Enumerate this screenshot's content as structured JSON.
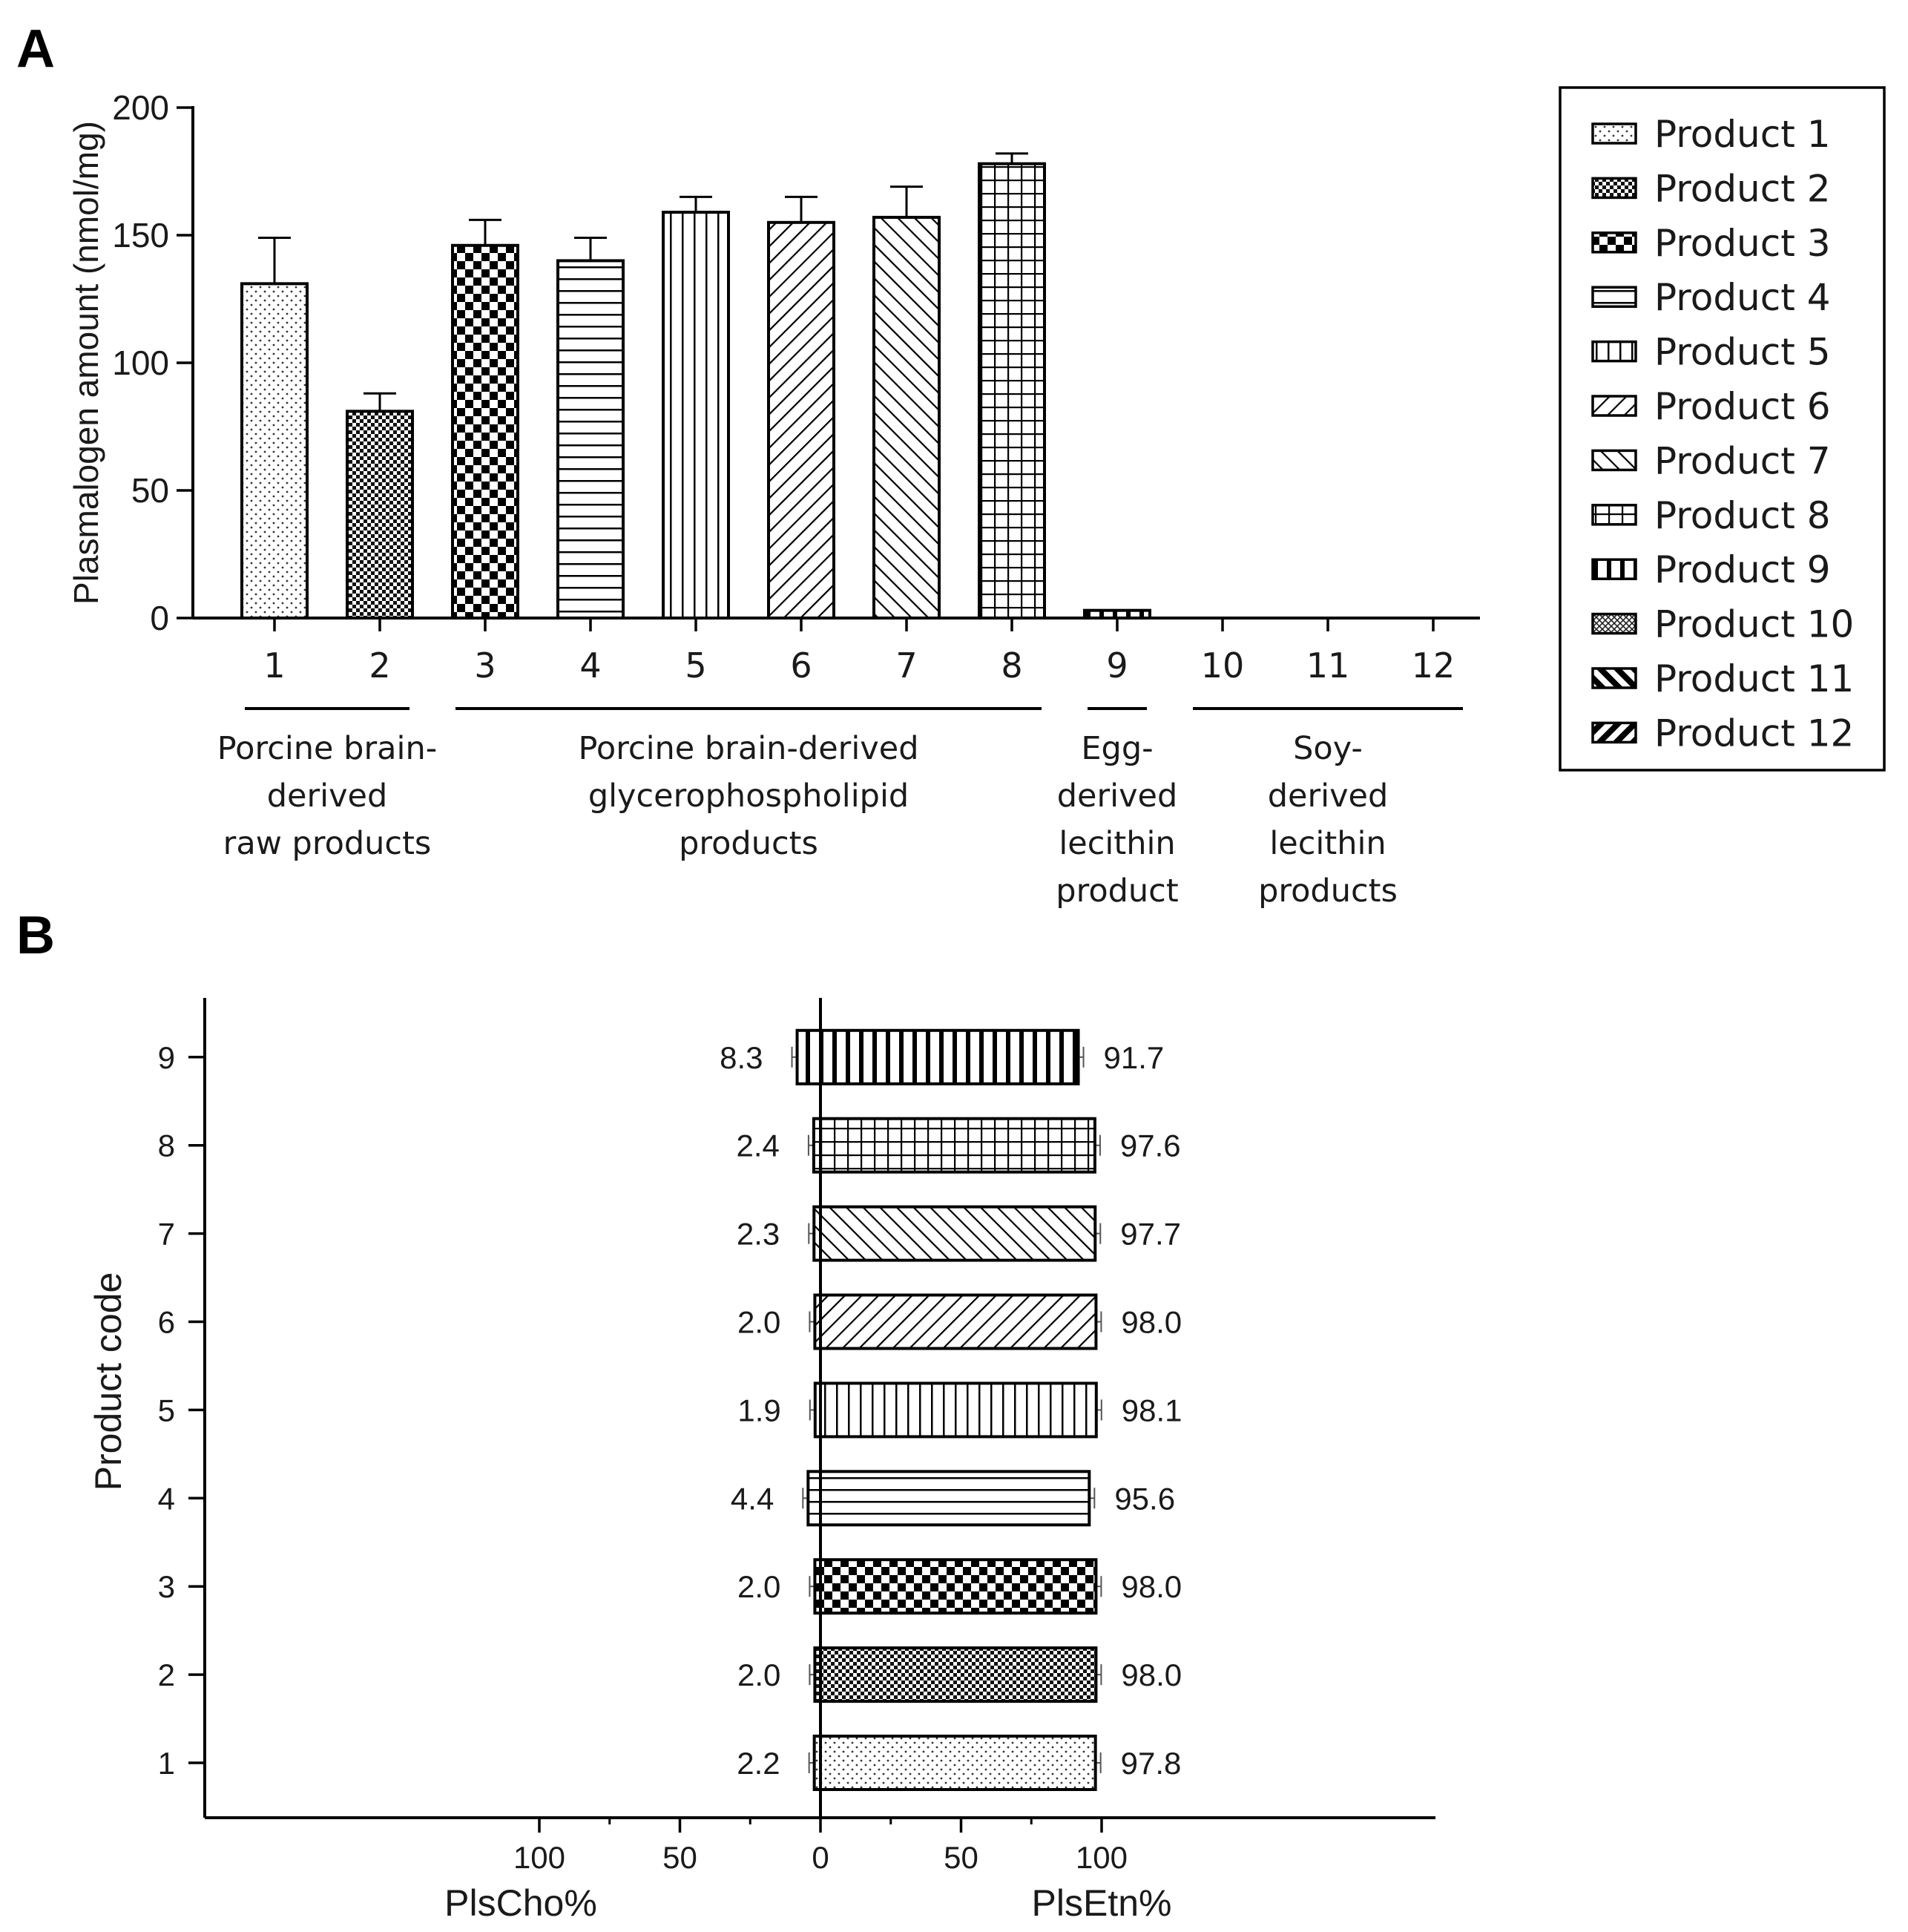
{
  "chart_data": [
    {
      "panel": "A",
      "type": "bar",
      "ylabel": "Plasmalogen amount (nmol/mg)",
      "ylim": [
        0,
        200
      ],
      "yticks": [
        0,
        50,
        100,
        150,
        200
      ],
      "categories": [
        "1",
        "2",
        "3",
        "4",
        "5",
        "6",
        "7",
        "8",
        "9",
        "10",
        "11",
        "12"
      ],
      "values": [
        131,
        81,
        146,
        140,
        159,
        155,
        157,
        178,
        3,
        0,
        0,
        0
      ],
      "errors": [
        18,
        7,
        10,
        9,
        6,
        10,
        12,
        4,
        0,
        0,
        0,
        0
      ],
      "patterns": [
        "dots",
        "fine-check",
        "check",
        "hlines",
        "vlines",
        "diag-right",
        "diag-left",
        "grid",
        "vbars-bold",
        "cross-dense",
        "diag-left-bold",
        "diag-right-bold"
      ],
      "groups": [
        {
          "label": "Porcine brain-derived raw products",
          "lines": [
            "Porcine brain-",
            "derived",
            "raw products"
          ],
          "from": 1,
          "to": 2
        },
        {
          "label": "Porcine brain-derived glycerophospholipid products",
          "lines": [
            "Porcine brain-derived",
            "glycerophospholipid",
            "products"
          ],
          "from": 3,
          "to": 8
        },
        {
          "label": "Egg-derived lecithin product",
          "lines": [
            "Egg-",
            "derived",
            "lecithin",
            "product"
          ],
          "from": 9,
          "to": 9
        },
        {
          "label": "Soy-derived lecithin products",
          "lines": [
            "Soy-",
            "derived",
            "lecithin",
            "products"
          ],
          "from": 10,
          "to": 12
        }
      ],
      "legend": {
        "placement": "right",
        "entries": [
          "Product 1",
          "Product 2",
          "Product 3",
          "Product 4",
          "Product 5",
          "Product 6",
          "Product 7",
          "Product 8",
          "Product 9",
          "Product 10",
          "Product 11",
          "Product 12"
        ]
      }
    },
    {
      "panel": "B",
      "type": "bar",
      "orientation": "horizontal",
      "ylabel": "Product code",
      "xlabel_left": "PlsCho%",
      "xlabel_right": "PlsEtn%",
      "xlim": [
        -110,
        110
      ],
      "xticks": [
        -100,
        -50,
        0,
        50,
        100
      ],
      "xtick_labels": [
        "100",
        "50",
        "0",
        "50",
        "100"
      ],
      "categories": [
        "1",
        "2",
        "3",
        "4",
        "5",
        "6",
        "7",
        "8",
        "9"
      ],
      "series": [
        {
          "name": "PlsCho%",
          "values": [
            2.2,
            2.0,
            2.0,
            4.4,
            1.9,
            2.0,
            2.3,
            2.4,
            8.3
          ],
          "labels": [
            "2.2",
            "2.0",
            "2.0",
            "4.4",
            "1.9",
            "2.0",
            "2.3",
            "2.4",
            "8.3"
          ]
        },
        {
          "name": "PlsEtn%",
          "values": [
            97.8,
            98.0,
            98.0,
            95.6,
            98.1,
            98.0,
            97.7,
            97.6,
            91.7
          ],
          "labels": [
            "97.8",
            "98.0",
            "98.0",
            "95.6",
            "98.1",
            "98.0",
            "97.7",
            "97.6",
            "91.7"
          ]
        }
      ],
      "patterns": [
        "dots",
        "fine-check",
        "check",
        "hlines",
        "vlines",
        "diag-right",
        "diag-left",
        "grid",
        "vbars-bold"
      ]
    }
  ],
  "panels": {
    "a_letter": "A",
    "b_letter": "B"
  }
}
